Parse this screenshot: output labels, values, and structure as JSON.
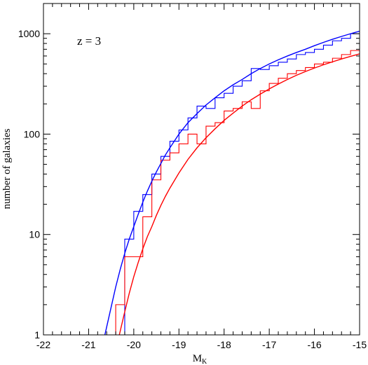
{
  "chart_data": {
    "type": "line",
    "title": "",
    "annotation": "z = 3",
    "xlabel": "M",
    "xlabel_sub": "K",
    "ylabel": "number of galaxies",
    "xlim": [
      -22,
      -15
    ],
    "ylim": [
      1,
      2000
    ],
    "yscale": "log",
    "grid": false,
    "x_ticks": [
      -22,
      -21,
      -20,
      -19,
      -18,
      -17,
      -16,
      -15
    ],
    "x_tick_labels": [
      "-22",
      "-21",
      "-20",
      "-19",
      "-18",
      "-17",
      "-16",
      "-15"
    ],
    "y_ticks": [
      1,
      10,
      100,
      1000
    ],
    "y_tick_labels": [
      "1",
      "10",
      "100",
      "1000"
    ],
    "series": [
      {
        "kind": "histogram",
        "color": "#0000ff",
        "bin_edges": [
          -22.0,
          -20.2,
          -20.0,
          -19.8,
          -19.6,
          -19.4,
          -19.2,
          -19.0,
          -18.8,
          -18.6,
          -18.4,
          -18.2,
          -18.0,
          -17.8,
          -17.6,
          -17.4,
          -17.2,
          -17.0,
          -16.8,
          -16.6,
          -16.4,
          -16.2,
          -16.0,
          -15.8,
          -15.6,
          -15.4,
          -15.2,
          -15.0
        ],
        "counts": [
          1,
          9,
          17,
          25,
          40,
          60,
          85,
          110,
          145,
          190,
          180,
          230,
          255,
          300,
          340,
          450,
          440,
          480,
          520,
          560,
          620,
          650,
          700,
          770,
          850,
          900,
          1000
        ]
      },
      {
        "kind": "histogram",
        "color": "#ff0000",
        "bin_edges": [
          -22.0,
          -20.4,
          -20.2,
          -19.8,
          -19.6,
          -19.4,
          -19.2,
          -19.0,
          -18.8,
          -18.6,
          -18.4,
          -18.2,
          -18.0,
          -17.8,
          -17.6,
          -17.4,
          -17.2,
          -17.0,
          -16.8,
          -16.6,
          -16.4,
          -16.2,
          -16.0,
          -15.8,
          -15.6,
          -15.4,
          -15.2,
          -15.0
        ],
        "counts": [
          1,
          2,
          6,
          15,
          35,
          55,
          65,
          80,
          100,
          80,
          120,
          130,
          170,
          180,
          210,
          180,
          270,
          320,
          360,
          400,
          430,
          460,
          500,
          520,
          570,
          620,
          680
        ]
      },
      {
        "kind": "curve",
        "color": "#0000ff",
        "x": [
          -20.64,
          -20.5,
          -20.4,
          -20.3,
          -20.2,
          -20.1,
          -20.0,
          -19.9,
          -19.8,
          -19.7,
          -19.6,
          -19.5,
          -19.4,
          -19.3,
          -19.2,
          -19.0,
          -18.8,
          -18.6,
          -18.4,
          -18.2,
          -18.0,
          -17.8,
          -17.6,
          -17.4,
          -17.2,
          -17.0,
          -16.8,
          -16.6,
          -16.4,
          -16.2,
          -16.0,
          -15.8,
          -15.6,
          -15.4,
          -15.2,
          -15.0
        ],
        "y": [
          1.0,
          1.9,
          3.0,
          4.5,
          6.5,
          9.0,
          12.0,
          16.0,
          21.0,
          27.0,
          34.0,
          42.0,
          51.0,
          62.0,
          73.0,
          100.0,
          130.0,
          160.0,
          195.0,
          230.0,
          270.0,
          310.0,
          350.0,
          400.0,
          450.0,
          500.0,
          550.0,
          600.0,
          650.0,
          700.0,
          760.0,
          820.0,
          880.0,
          940.0,
          1000.0,
          1060.0
        ]
      },
      {
        "kind": "curve",
        "color": "#ff0000",
        "x": [
          -20.32,
          -20.2,
          -20.1,
          -20.0,
          -19.9,
          -19.8,
          -19.7,
          -19.6,
          -19.5,
          -19.4,
          -19.3,
          -19.2,
          -19.0,
          -18.8,
          -18.6,
          -18.4,
          -18.2,
          -18.0,
          -17.8,
          -17.6,
          -17.4,
          -17.2,
          -17.0,
          -16.8,
          -16.6,
          -16.4,
          -16.2,
          -16.0,
          -15.8,
          -15.6,
          -15.4,
          -15.2,
          -15.0
        ],
        "y": [
          1.0,
          1.7,
          2.6,
          3.8,
          5.3,
          7.2,
          9.5,
          12.0,
          15.5,
          19.5,
          24.0,
          29.0,
          41.0,
          56.0,
          73.0,
          92.0,
          113.0,
          137.0,
          162.0,
          190.0,
          220.0,
          250.0,
          282.0,
          315.0,
          350.0,
          385.0,
          420.0,
          455.0,
          490.0,
          525.0,
          560.0,
          595.0,
          630.0
        ]
      }
    ]
  }
}
